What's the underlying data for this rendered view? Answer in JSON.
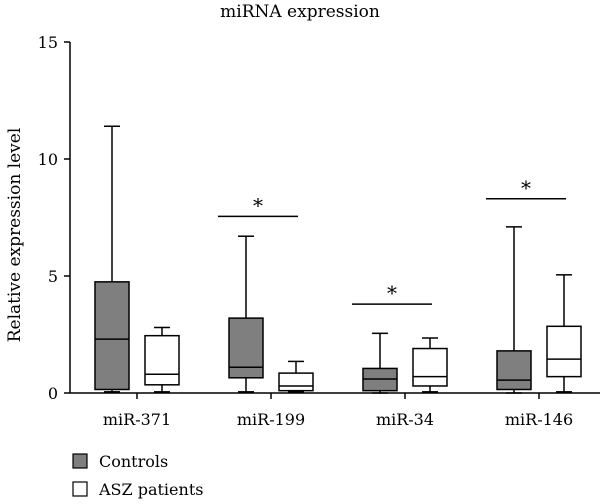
{
  "chart_data": {
    "type": "boxplot",
    "title": "miRNA expression",
    "ylabel": "Relative expression level",
    "xlabel": "",
    "ylim": [
      0,
      15
    ],
    "yticks": [
      0,
      5,
      10,
      15
    ],
    "categories": [
      "miR-371",
      "miR-199",
      "miR-34",
      "miR-146"
    ],
    "series": [
      {
        "name": "Controls",
        "color": "#7f7f7f",
        "boxes": [
          {
            "min": 0.05,
            "q1": 0.15,
            "median": 2.3,
            "q3": 4.75,
            "max": 11.4
          },
          {
            "min": 0.05,
            "q1": 0.65,
            "median": 1.1,
            "q3": 3.2,
            "max": 6.7
          },
          {
            "min": 0.0,
            "q1": 0.1,
            "median": 0.6,
            "q3": 1.05,
            "max": 2.55
          },
          {
            "min": 0.0,
            "q1": 0.15,
            "median": 0.55,
            "q3": 1.8,
            "max": 7.1
          }
        ]
      },
      {
        "name": "ASZ patients",
        "color": "#ffffff",
        "boxes": [
          {
            "min": 0.05,
            "q1": 0.35,
            "median": 0.8,
            "q3": 2.45,
            "max": 2.8
          },
          {
            "min": 0.05,
            "q1": 0.1,
            "median": 0.3,
            "q3": 0.85,
            "max": 1.35
          },
          {
            "min": 0.05,
            "q1": 0.3,
            "median": 0.7,
            "q3": 1.9,
            "max": 2.35
          },
          {
            "min": 0.05,
            "q1": 0.7,
            "median": 1.45,
            "q3": 2.85,
            "max": 5.05
          }
        ]
      }
    ],
    "significance": [
      {
        "category": "miR-199",
        "label": "*",
        "y": 7.55
      },
      {
        "category": "miR-34",
        "label": "*",
        "y": 3.8
      },
      {
        "category": "miR-146",
        "label": "*",
        "y": 8.3
      }
    ],
    "legend_position": "bottom-left",
    "grid": false
  }
}
